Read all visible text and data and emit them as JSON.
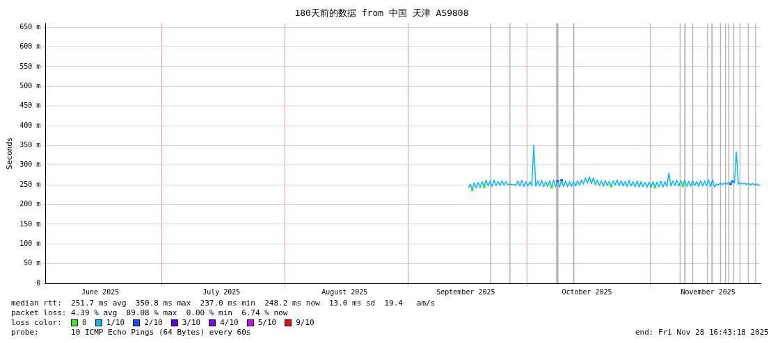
{
  "chart_data": {
    "type": "line",
    "title": "180天前的数据 from 中国 天津 AS9808",
    "ylabel": "Seconds",
    "xlim": [
      "2025-06-01T16:43",
      "2025-11-28T16:43"
    ],
    "xticks": [
      {
        "value": "2025-06-15T12:00",
        "label": "June 2025"
      },
      {
        "value": "2025-07-01",
        "label": null
      },
      {
        "value": "2025-07-16",
        "label": "July 2025"
      },
      {
        "value": "2025-08-01",
        "label": null
      },
      {
        "value": "2025-08-16",
        "label": "August 2025"
      },
      {
        "value": "2025-09-01",
        "label": null
      },
      {
        "value": "2025-09-15T12:00",
        "label": "September 2025"
      },
      {
        "value": "2025-10-01",
        "label": null
      },
      {
        "value": "2025-10-16",
        "label": "October 2025"
      },
      {
        "value": "2025-11-01",
        "label": null
      },
      {
        "value": "2025-11-15T12:00",
        "label": "November 2025"
      }
    ],
    "ylim": [
      0,
      660
    ],
    "yticks": [
      0,
      {
        "value": 50,
        "label": "50 m"
      },
      {
        "value": 100,
        "label": "100 m"
      },
      {
        "value": 150,
        "label": "150 m"
      },
      {
        "value": 200,
        "label": "200 m"
      },
      {
        "value": 250,
        "label": "250 m"
      },
      {
        "value": 300,
        "label": "300 m"
      },
      {
        "value": 350,
        "label": "350 m"
      },
      {
        "value": 400,
        "label": "400 m"
      },
      {
        "value": 450,
        "label": "450 m"
      },
      {
        "value": 500,
        "label": "500 m"
      },
      {
        "value": 550,
        "label": "550 m"
      },
      {
        "value": 600,
        "label": "600 m"
      },
      {
        "value": 650,
        "label": "650 m"
      }
    ],
    "grid": true,
    "legend": "bottom",
    "legend_title": "loss color:",
    "series": [
      {
        "name": "0",
        "type": "scatter",
        "marker": "square",
        "color": "#26ff00",
        "x": [
          "2025-09-17T03:00",
          "2025-09-20T03:00",
          "2025-10-07T03:00",
          "2025-10-22T03:00",
          "2025-11-02T03:00",
          "2025-11-09T03:00"
        ],
        "values": [
          237,
          245,
          244,
          247,
          244,
          248
        ]
      },
      {
        "name": "1/10",
        "marker": "none",
        "color": "#00b8ff",
        "x": [
          "2025-09-16T03:00",
          "2025-09-16T15:00",
          "2025-09-17T03:00",
          "2025-09-17T15:00",
          "2025-09-18T03:00",
          "2025-09-18T15:00",
          "2025-09-19T03:00",
          "2025-09-19T15:00",
          "2025-09-20T03:00",
          "2025-09-20T15:00",
          "2025-09-21T03:00",
          "2025-09-21T15:00",
          "2025-09-22T03:00",
          "2025-09-22T15:00",
          "2025-09-23T03:00",
          "2025-09-23T15:00",
          "2025-09-24T03:00",
          "2025-09-24T15:00",
          "2025-09-25T03:00",
          "2025-09-25T15:00",
          "2025-09-26T03:00",
          "2025-09-26T15:00",
          "2025-09-27T03:00",
          "2025-09-27T15:00",
          "2025-09-28T03:00",
          "2025-09-28T15:00",
          "2025-09-29T03:00",
          "2025-09-29T15:00",
          "2025-09-30T03:00",
          "2025-09-30T15:00",
          "2025-10-01T03:00",
          "2025-10-01T15:00",
          "2025-10-02T03:00",
          "2025-10-02T15:00",
          "2025-10-03T03:00",
          "2025-10-03T15:00",
          "2025-10-04T03:00",
          "2025-10-04T15:00",
          "2025-10-05T03:00",
          "2025-10-05T15:00",
          "2025-10-06T03:00",
          "2025-10-06T15:00",
          "2025-10-07T03:00",
          "2025-10-07T15:00",
          "2025-10-08T03:00",
          "2025-10-08T15:00",
          "2025-10-09T03:00",
          "2025-10-09T15:00",
          "2025-10-10T03:00",
          "2025-10-10T15:00",
          "2025-10-11T03:00",
          "2025-10-11T15:00",
          "2025-10-12T03:00",
          "2025-10-12T15:00",
          "2025-10-13T03:00",
          "2025-10-13T15:00",
          "2025-10-14T03:00",
          "2025-10-14T15:00",
          "2025-10-15T03:00",
          "2025-10-15T15:00",
          "2025-10-16T03:00",
          "2025-10-16T15:00",
          "2025-10-17T03:00",
          "2025-10-17T15:00",
          "2025-10-18T03:00",
          "2025-10-18T15:00",
          "2025-10-19T03:00",
          "2025-10-19T15:00",
          "2025-10-20T03:00",
          "2025-10-20T15:00",
          "2025-10-21T03:00",
          "2025-10-21T15:00",
          "2025-10-22T03:00",
          "2025-10-22T15:00",
          "2025-10-23T03:00",
          "2025-10-23T15:00",
          "2025-10-24T03:00",
          "2025-10-24T15:00",
          "2025-10-25T03:00",
          "2025-10-25T15:00",
          "2025-10-26T03:00",
          "2025-10-26T15:00",
          "2025-10-27T03:00",
          "2025-10-27T15:00",
          "2025-10-28T03:00",
          "2025-10-28T15:00",
          "2025-10-29T03:00",
          "2025-10-29T15:00",
          "2025-10-30T03:00",
          "2025-10-30T15:00",
          "2025-10-31T03:00",
          "2025-10-31T15:00",
          "2025-11-01T03:00",
          "2025-11-01T15:00",
          "2025-11-02T03:00",
          "2025-11-02T15:00",
          "2025-11-03T03:00",
          "2025-11-03T15:00",
          "2025-11-04T03:00",
          "2025-11-04T15:00",
          "2025-11-05T03:00",
          "2025-11-05T15:00",
          "2025-11-06T03:00",
          "2025-11-06T15:00",
          "2025-11-07T03:00",
          "2025-11-07T15:00",
          "2025-11-08T03:00",
          "2025-11-08T15:00",
          "2025-11-09T03:00",
          "2025-11-09T15:00",
          "2025-11-10T03:00",
          "2025-11-10T15:00",
          "2025-11-11T03:00",
          "2025-11-11T15:00",
          "2025-11-12T03:00",
          "2025-11-12T15:00",
          "2025-11-13T03:00",
          "2025-11-13T15:00",
          "2025-11-14T03:00",
          "2025-11-14T15:00",
          "2025-11-15T03:00",
          "2025-11-15T15:00",
          "2025-11-16T03:00",
          "2025-11-16T15:00",
          "2025-11-17T03:00",
          "2025-11-17T15:00",
          "2025-11-18T03:00",
          "2025-11-18T15:00",
          "2025-11-19T03:00",
          "2025-11-19T15:00",
          "2025-11-20T03:00",
          "2025-11-20T15:00",
          "2025-11-21T03:00",
          "2025-11-21T15:00",
          "2025-11-22T03:00",
          "2025-11-22T15:00",
          "2025-11-23T03:00",
          "2025-11-23T15:00",
          "2025-11-24T03:00",
          "2025-11-24T15:00",
          "2025-11-25T03:00",
          "2025-11-25T15:00",
          "2025-11-26T03:00",
          "2025-11-26T15:00",
          "2025-11-27T03:00",
          "2025-11-27T15:00",
          "2025-11-28T03:00",
          "2025-11-28T15:00"
        ],
        "values": [
          242,
          252,
          237,
          255,
          242,
          256,
          243,
          258,
          245,
          262,
          247,
          260,
          246,
          262,
          248,
          258,
          248,
          260,
          249,
          258,
          250,
          252,
          250,
          251,
          248,
          260,
          247,
          262,
          246,
          258,
          247,
          258,
          248,
          350,
          246,
          260,
          247,
          262,
          245,
          258,
          246,
          260,
          244,
          262,
          245,
          259,
          244,
          261,
          246,
          260,
          245,
          258,
          246,
          259,
          247,
          260,
          249,
          262,
          252,
          268,
          254,
          270,
          253,
          268,
          250,
          262,
          248,
          260,
          247,
          261,
          248,
          259,
          247,
          260,
          249,
          262,
          248,
          260,
          247,
          259,
          246,
          261,
          247,
          258,
          245,
          260,
          244,
          258,
          245,
          256,
          244,
          257,
          243,
          258,
          244,
          257,
          245,
          259,
          244,
          258,
          246,
          280,
          247,
          260,
          248,
          262,
          247,
          260,
          248,
          262,
          246,
          259,
          247,
          260,
          248,
          258,
          246,
          261,
          247,
          259,
          248,
          262,
          245,
          263,
          244,
          252,
          250,
          254,
          251,
          255,
          252,
          256,
          253,
          258,
          255,
          333,
          252,
          255,
          252,
          254,
          251,
          254,
          250,
          253,
          250,
          252,
          249,
          250
        ]
      },
      {
        "name": "2/10",
        "type": "scatter",
        "marker": "square",
        "color": "#0059ff",
        "x": [
          "2025-10-09T15:00",
          "2025-11-21T15:00"
        ],
        "values": [
          261,
          258
        ]
      },
      {
        "name": "3/10",
        "type": "scatter",
        "marker": "square",
        "color": "#5e00ff",
        "x": [
          "2025-11-21T03:00"
        ],
        "values": [
          253
        ]
      },
      {
        "name": "4/10",
        "type": "scatter",
        "marker": "square",
        "color": "#7e00ff",
        "x": [
          "2025-10-08T15:00"
        ],
        "values": [
          259
        ]
      },
      {
        "name": "5/10",
        "type": "scatter",
        "marker": "square",
        "color": "#dd00ff"
      },
      {
        "name": "9/10",
        "type": "scatter",
        "marker": "square",
        "color": "#ff0000"
      }
    ],
    "bands": [
      {
        "axis": "x",
        "from": "2025-09-21T14:00",
        "to": "2025-09-21T20:00",
        "color": "#b4b4b4"
      },
      {
        "axis": "x",
        "from": "2025-09-26T12:00",
        "to": "2025-09-26T18:00",
        "color": "#b4b4b4"
      },
      {
        "axis": "x",
        "from": "2025-10-08T06:00",
        "to": "2025-10-08T20:00",
        "color": "#b4b4b4"
      },
      {
        "axis": "x",
        "from": "2025-10-12T12:00",
        "to": "2025-10-12T20:00",
        "color": "#b4b4b4"
      },
      {
        "axis": "x",
        "from": "2025-11-08T08:00",
        "to": "2025-11-08T14:00",
        "color": "#b4b4b4"
      },
      {
        "axis": "x",
        "from": "2025-11-09T12:00",
        "to": "2025-11-09T20:00",
        "color": "#b4b4b4"
      },
      {
        "axis": "x",
        "from": "2025-11-11T12:00",
        "to": "2025-11-11T18:00",
        "color": "#b4b4b4"
      },
      {
        "axis": "x",
        "from": "2025-11-15T06:00",
        "to": "2025-11-15T12:00",
        "color": "#b4b4b4"
      },
      {
        "axis": "x",
        "from": "2025-11-16T08:00",
        "to": "2025-11-16T16:00",
        "color": "#b4b4b4"
      },
      {
        "axis": "x",
        "from": "2025-11-18T12:00",
        "to": "2025-11-18T18:00",
        "color": "#b4b4b4"
      },
      {
        "axis": "x",
        "from": "2025-11-19T18:00",
        "to": "2025-11-20T00:00",
        "color": "#b4b4b4"
      },
      {
        "axis": "x",
        "from": "2025-11-20T14:00",
        "to": "2025-11-20T20:00",
        "color": "#b4b4b4"
      },
      {
        "axis": "x",
        "from": "2025-11-21T20:00",
        "to": "2025-11-22T02:00",
        "color": "#b4b4b4"
      },
      {
        "axis": "x",
        "from": "2025-11-23T10:00",
        "to": "2025-11-23T16:00",
        "color": "#b4b4b4"
      },
      {
        "axis": "x",
        "from": "2025-11-25T12:00",
        "to": "2025-11-25T18:00",
        "color": "#b4b4b4"
      },
      {
        "axis": "x",
        "from": "2025-11-27T08:00",
        "to": "2025-11-27T14:00",
        "color": "#b4b4b4"
      }
    ],
    "annotations": [
      "median rtt:  251.7 ms avg  350.8 ms max  237.0 ms min  248.2 ms now  13.0 ms sd  19.4   am/s",
      "packet loss: 4.39 % avg  89.08 % max  0.00 % min  6.74 % now",
      "probe:       10 ICMP Echo Pings (64 Bytes) every 60s",
      "end: Fri Nov 28 16:43:18 2025"
    ]
  }
}
